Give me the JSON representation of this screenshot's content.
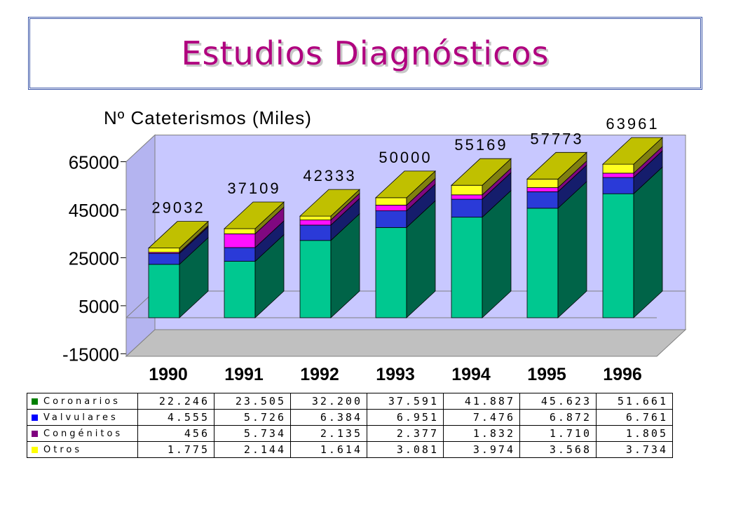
{
  "title": "Estudios Diagnósticos",
  "chart_data": {
    "type": "bar",
    "stacked": true,
    "three_d": true,
    "title": "Nº Cateterismos (Miles)",
    "categories": [
      "1990",
      "1991",
      "1992",
      "1993",
      "1994",
      "1995",
      "1996"
    ],
    "totals": [
      "29032",
      "37109",
      "42333",
      "50000",
      "55169",
      "57773",
      "63961"
    ],
    "y_ticks": [
      "65000",
      "45000",
      "25000",
      "5000",
      "-15000"
    ],
    "ylim": [
      -15000,
      65000
    ],
    "legend_placement": "table-below",
    "series": [
      {
        "name": "Coronarios",
        "color": "#00c890",
        "values": [
          22246,
          23505,
          32200,
          37591,
          41887,
          45623,
          51661
        ],
        "labels": [
          "22.246",
          "23.505",
          "32.200",
          "37.591",
          "41.887",
          "45.623",
          "51.661"
        ]
      },
      {
        "name": "Valvulares",
        "color": "#2a3ad8",
        "values": [
          4555,
          5726,
          6384,
          6951,
          7476,
          6872,
          6761
        ],
        "labels": [
          "4.555",
          "5.726",
          "6.384",
          "6.951",
          "7.476",
          "6.872",
          "6.761"
        ]
      },
      {
        "name": "Congénitos",
        "color": "#ff10ff",
        "values": [
          456,
          5734,
          2135,
          2377,
          1832,
          1710,
          1805
        ],
        "labels": [
          "456",
          "5.734",
          "2.135",
          "2.377",
          "1.832",
          "1.710",
          "1.805"
        ]
      },
      {
        "name": "Otros",
        "color": "#ffff20",
        "values": [
          1775,
          2144,
          1614,
          3081,
          3974,
          3568,
          3734
        ],
        "labels": [
          "1.775",
          "2.144",
          "1.614",
          "3.081",
          "3.974",
          "3.568",
          "3.734"
        ]
      }
    ],
    "legend_swatches": [
      "#008000",
      "#0000ff",
      "#800080",
      "#ffff00"
    ]
  }
}
